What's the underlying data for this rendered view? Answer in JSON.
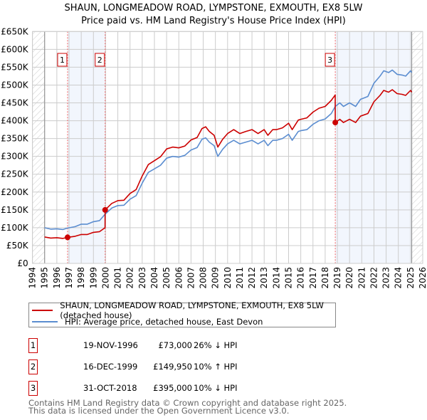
{
  "chart_data": {
    "type": "line",
    "title": "SHAUN, LONGMEADOW ROAD, LYMPSTONE, EXMOUTH, EX8 5LW",
    "subtitle": "Price paid vs. HM Land Registry's House Price Index (HPI)",
    "xlim": [
      1994,
      2026
    ],
    "ylim": [
      0,
      650000
    ],
    "x_ticks": [
      "1994",
      "1995",
      "1996",
      "1997",
      "1998",
      "1999",
      "2000",
      "2001",
      "2002",
      "2003",
      "2004",
      "2005",
      "2006",
      "2007",
      "2008",
      "2009",
      "2010",
      "2011",
      "2012",
      "2013",
      "2014",
      "2015",
      "2016",
      "2017",
      "2018",
      "2019",
      "2020",
      "2021",
      "2022",
      "2023",
      "2024",
      "2025",
      "2026"
    ],
    "y_ticks": [
      0,
      50000,
      100000,
      150000,
      200000,
      250000,
      300000,
      350000,
      400000,
      450000,
      500000,
      550000,
      600000,
      650000
    ],
    "y_tick_labels": [
      "£0",
      "£50K",
      "£100K",
      "£150K",
      "£200K",
      "£250K",
      "£300K",
      "£350K",
      "£400K",
      "£450K",
      "£500K",
      "£550K",
      "£600K",
      "£650K"
    ],
    "grid": true,
    "data_range": [
      1995,
      2025.1
    ],
    "series": [
      {
        "name": "SHAUN, LONGMEADOW ROAD, LYMPSTONE, EXMOUTH, EX8 5LW (detached house)",
        "color": "#cc0000",
        "x": [
          1995,
          1995.5,
          1996,
          1996.5,
          1996.88,
          1997.5,
          1998,
          1998.5,
          1999,
          1999.5,
          1999.95,
          1999.96,
          2000.5,
          2001,
          2001.5,
          2002,
          2002.5,
          2003,
          2003.5,
          2004,
          2004.5,
          2005,
          2005.5,
          2006,
          2006.5,
          2007,
          2007.5,
          2007.9,
          2008.2,
          2008.5,
          2008.9,
          2009.2,
          2009.6,
          2010,
          2010.5,
          2011,
          2011.5,
          2012,
          2012.5,
          2013,
          2013.3,
          2013.7,
          2014,
          2014.5,
          2015,
          2015.3,
          2015.8,
          2016,
          2016.5,
          2017,
          2017.5,
          2018,
          2018.5,
          2018.82,
          2018.83,
          2019.2,
          2019.5,
          2020,
          2020.5,
          2020.9,
          2021.5,
          2022,
          2022.5,
          2022.8,
          2023.2,
          2023.5,
          2023.9,
          2024.3,
          2024.6,
          2025,
          2025.1
        ],
        "y": [
          74000,
          71000,
          72000,
          70000,
          73000,
          76000,
          81000,
          81000,
          87000,
          89000,
          100000,
          149950,
          168000,
          176000,
          177000,
          196000,
          207000,
          245000,
          277000,
          288000,
          299000,
          321000,
          326000,
          324000,
          329000,
          346000,
          353000,
          378000,
          383000,
          370000,
          359000,
          326000,
          348000,
          364000,
          375000,
          364000,
          370000,
          375000,
          364000,
          375000,
          359000,
          375000,
          375000,
          380000,
          393000,
          375000,
          402000,
          404000,
          408000,
          424000,
          435000,
          440000,
          457000,
          472000,
          395000,
          404000,
          395000,
          404000,
          395000,
          413000,
          420000,
          453000,
          471000,
          485000,
          480000,
          487000,
          476000,
          474000,
          471000,
          485000,
          480000
        ]
      },
      {
        "name": "HPI: Average price, detached house, East Devon",
        "color": "#5b8dd0",
        "x": [
          1995,
          1995.5,
          1996,
          1996.5,
          1996.88,
          1997.5,
          1998,
          1998.5,
          1999,
          1999.5,
          1999.96,
          2000.5,
          2001,
          2001.5,
          2002,
          2002.5,
          2003,
          2003.5,
          2004,
          2004.5,
          2005,
          2005.5,
          2006,
          2006.5,
          2007,
          2007.5,
          2007.9,
          2008.2,
          2008.5,
          2008.9,
          2009.2,
          2009.6,
          2010,
          2010.5,
          2011,
          2011.5,
          2012,
          2012.5,
          2013,
          2013.3,
          2013.7,
          2014,
          2014.5,
          2015,
          2015.3,
          2015.8,
          2016,
          2016.5,
          2017,
          2017.5,
          2018,
          2018.5,
          2018.83,
          2019.2,
          2019.5,
          2020,
          2020.5,
          2020.9,
          2021.5,
          2022,
          2022.5,
          2022.8,
          2023.2,
          2023.5,
          2023.9,
          2024.3,
          2024.6,
          2025,
          2025.1
        ],
        "y": [
          100000,
          96000,
          97000,
          95000,
          99000,
          103000,
          110000,
          110000,
          117000,
          120000,
          138000,
          155000,
          162000,
          163000,
          180000,
          190000,
          225000,
          255000,
          265000,
          275000,
          295000,
          300000,
          298000,
          303000,
          318000,
          325000,
          348000,
          352000,
          340000,
          330000,
          300000,
          320000,
          335000,
          345000,
          335000,
          340000,
          345000,
          335000,
          345000,
          330000,
          345000,
          345000,
          350000,
          362000,
          345000,
          370000,
          372000,
          375000,
          390000,
          400000,
          405000,
          420000,
          440000,
          450000,
          440000,
          450000,
          440000,
          460000,
          468000,
          505000,
          525000,
          540000,
          535000,
          542000,
          530000,
          528000,
          525000,
          540000,
          535000
        ]
      }
    ],
    "sales": [
      {
        "label": "1",
        "x": 1996.88,
        "y": 73000,
        "date": "19-NOV-1996",
        "price": "£73,000",
        "hpi": "26% ↓ HPI"
      },
      {
        "label": "2",
        "x": 1999.96,
        "y": 149950,
        "date": "16-DEC-1999",
        "price": "£149,950",
        "hpi": "10% ↑ HPI"
      },
      {
        "label": "3",
        "x": 2018.83,
        "y": 395000,
        "date": "31-OCT-2018",
        "price": "£395,000",
        "hpi": "10% ↓ HPI"
      }
    ]
  },
  "legend": {
    "items": [
      {
        "label": "SHAUN, LONGMEADOW ROAD, LYMPSTONE, EXMOUTH, EX8 5LW (detached house)",
        "color": "#cc0000"
      },
      {
        "label": "HPI: Average price, detached house, East Devon",
        "color": "#5b8dd0"
      }
    ]
  },
  "footer": {
    "line1": "Contains HM Land Registry data © Crown copyright and database right 2025.",
    "line2": "This data is licensed under the Open Government Licence v3.0."
  }
}
